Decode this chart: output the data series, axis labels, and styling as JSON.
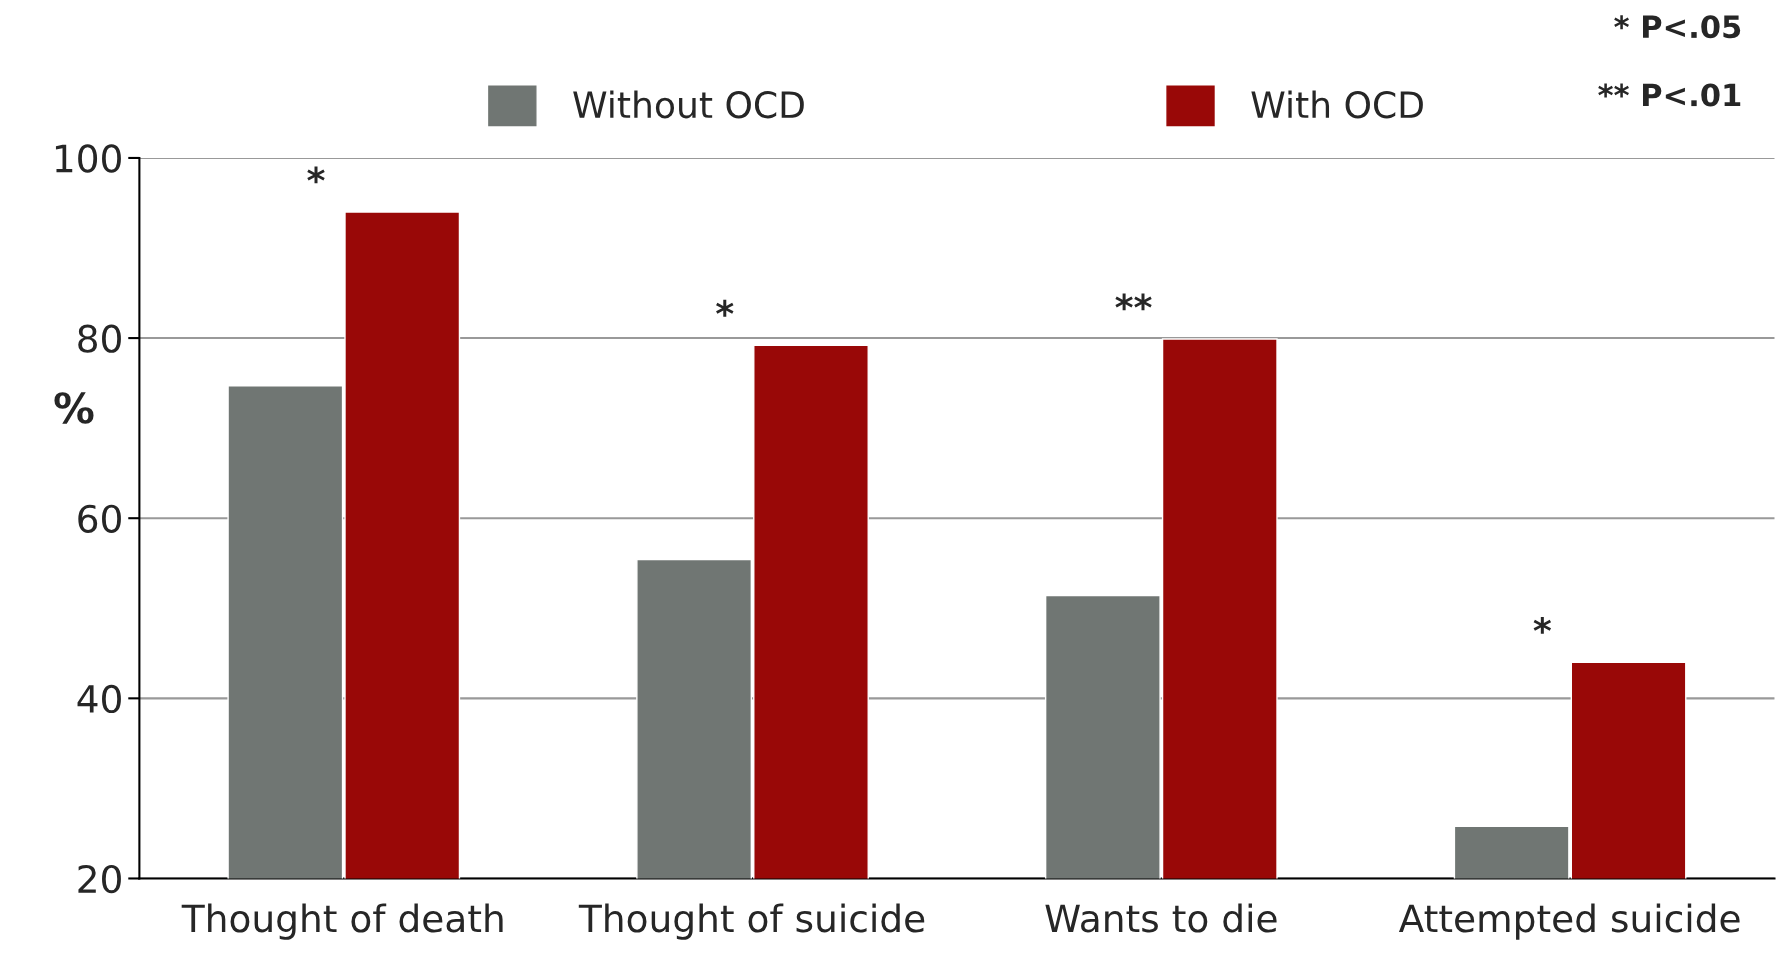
{
  "chart_data": {
    "type": "bar",
    "ylabel": "%",
    "categories": [
      "Thought of death",
      "Thought of suicide",
      "Wants to die",
      "Attempted suicide"
    ],
    "series": [
      {
        "name": "Without OCD",
        "color": "#707673",
        "values": [
          74.7,
          55.4,
          51.4,
          25.8
        ]
      },
      {
        "name": "With OCD",
        "color": "#990807",
        "values": [
          94,
          79.2,
          79.9,
          44
        ]
      }
    ],
    "ylim": [
      20,
      100
    ],
    "yticks": [
      20,
      40,
      60,
      80,
      100
    ],
    "grid": "y",
    "legend": "top",
    "annotations": [
      "* P<.05",
      "** P<.01",
      {
        "text": "*",
        "x": "Thought of death",
        "y": 94
      },
      {
        "text": "*",
        "x": "Thought of suicide",
        "y": 79.2
      },
      {
        "text": "**",
        "x": "Wants to die",
        "y": 79.9
      },
      {
        "text": "*",
        "x": "Attempted suicide",
        "y": 44
      }
    ]
  }
}
